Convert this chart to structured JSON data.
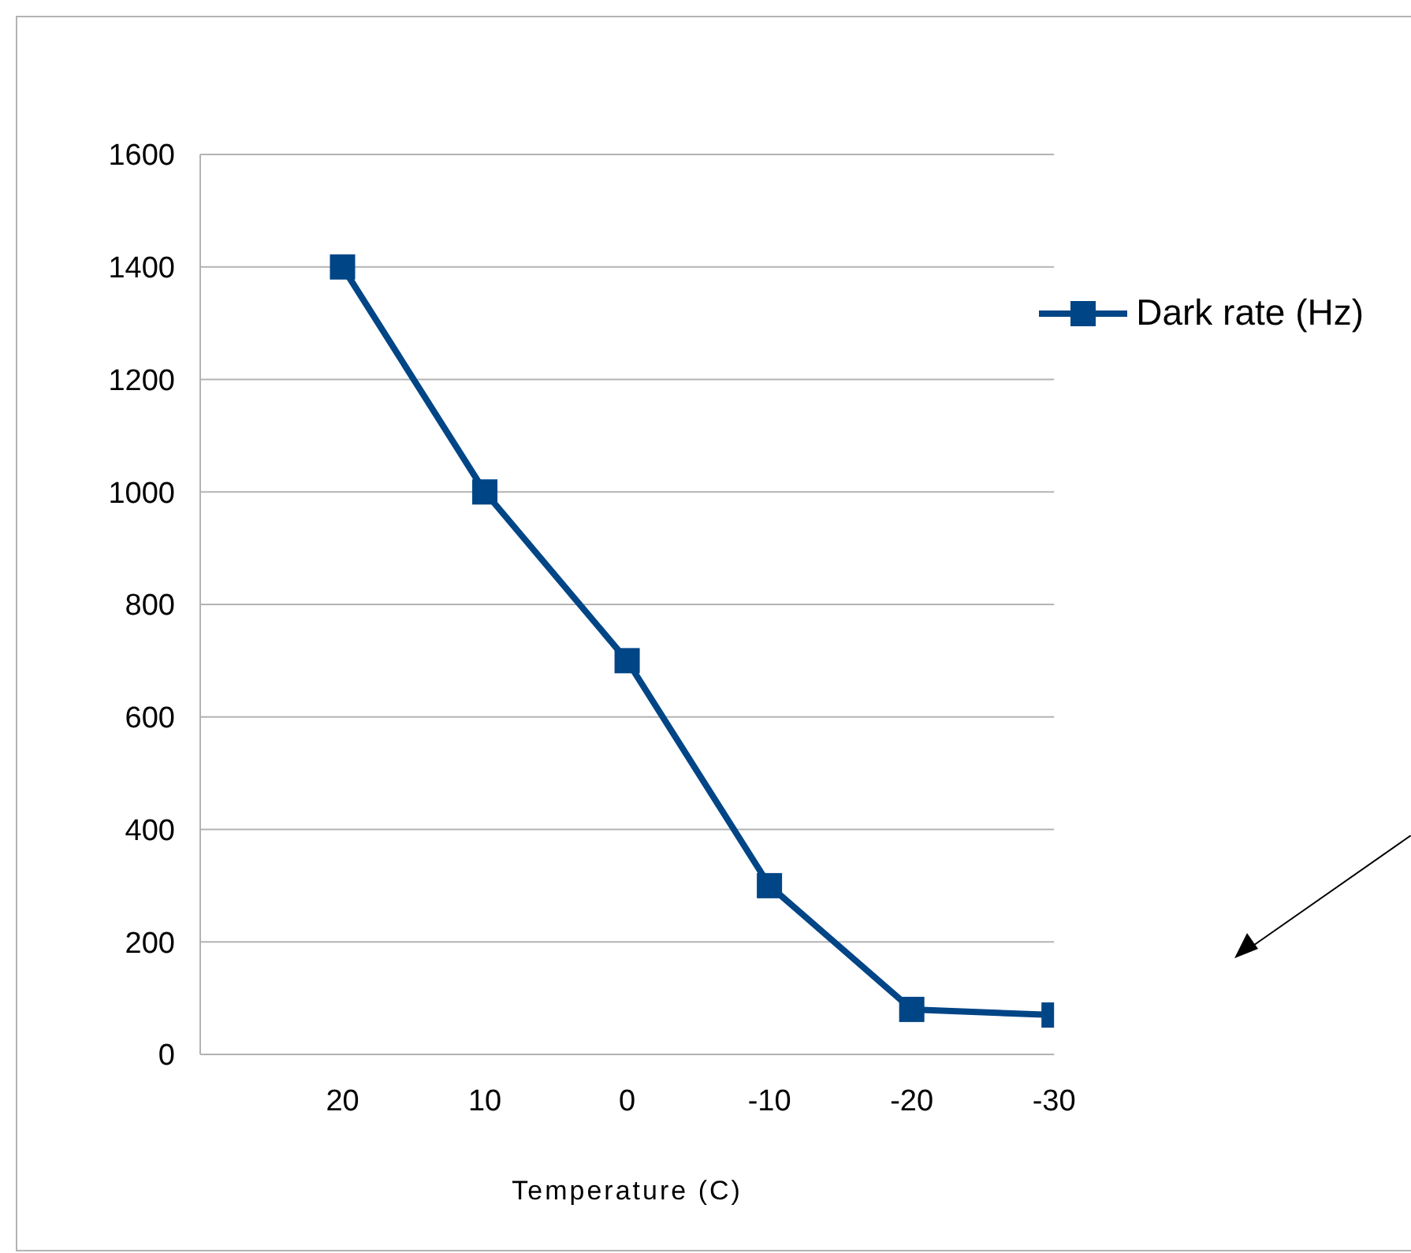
{
  "chart_data": {
    "type": "line",
    "xlabel": "Temperature (C)",
    "categories": [
      "20",
      "10",
      "0",
      "-10",
      "-20",
      "-30"
    ],
    "series": [
      {
        "name": "Dark rate (Hz)",
        "color": "#004586",
        "values": [
          1400,
          1000,
          700,
          300,
          80,
          70
        ]
      }
    ],
    "ylim": [
      0,
      1600
    ],
    "yticks": [
      0,
      200,
      400,
      600,
      800,
      1000,
      1200,
      1400,
      1600
    ],
    "grid": "y",
    "legend": "top right",
    "marker": "square",
    "line_style": "solid"
  }
}
